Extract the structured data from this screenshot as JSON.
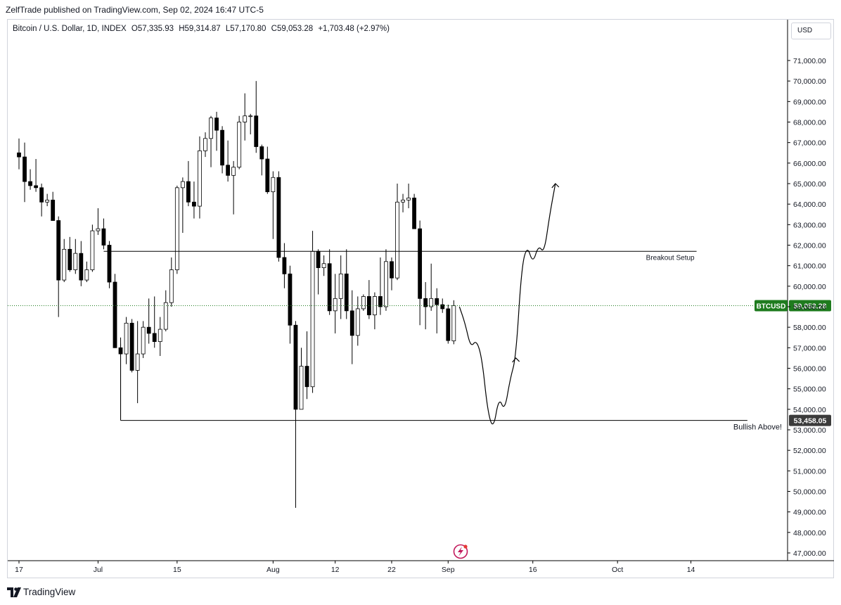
{
  "header": {
    "byline": "ZelfTrade published on TradingView.com, Sep 02, 2024 16:47 UTC-5"
  },
  "legend": {
    "symbol": "Bitcoin / U.S. Dollar, 1D, INDEX",
    "open": "O57,335.93",
    "high": "H59,314.87",
    "low": "L57,170.80",
    "close": "C59,053.28",
    "change": "+1,703.48 (+2.97%)"
  },
  "currency_button": "USD",
  "footer": {
    "brand": "TradingView"
  },
  "colors": {
    "up_body": "#ffffff",
    "down_body": "#000000",
    "wick": "#000000",
    "price_tag": "#1e7b1e",
    "support_tag": "#3b3b3b",
    "lines": "#000000"
  },
  "chart_data": {
    "type": "candlestick",
    "ylim": [
      46600,
      72000
    ],
    "y_ticks": [
      47000,
      48000,
      49000,
      50000,
      51000,
      52000,
      53000,
      54000,
      55000,
      56000,
      57000,
      58000,
      59000,
      60000,
      61000,
      62000,
      63000,
      64000,
      65000,
      66000,
      67000,
      68000,
      69000,
      70000,
      71000
    ],
    "y_tick_labels": [
      "47,000.00",
      "48,000.00",
      "49,000.00",
      "50,000.00",
      "51,000.00",
      "52,000.00",
      "53,000.00",
      "54,000.00",
      "55,000.00",
      "56,000.00",
      "57,000.00",
      "58,000.00",
      "59,000.00",
      "60,000.00",
      "61,000.00",
      "62,000.00",
      "63,000.00",
      "64,000.00",
      "65,000.00",
      "66,000.00",
      "67,000.00",
      "68,000.00",
      "69,000.00",
      "70,000.00",
      "71,000.00"
    ],
    "x_ticks": [
      {
        "label": "17",
        "date": "2024-06-17"
      },
      {
        "label": "Jul",
        "date": "2024-07-01"
      },
      {
        "label": "15",
        "date": "2024-07-15"
      },
      {
        "label": "Aug",
        "date": "2024-08-01"
      },
      {
        "label": "12",
        "date": "2024-08-12"
      },
      {
        "label": "22",
        "date": "2024-08-22"
      },
      {
        "label": "Sep",
        "date": "2024-09-01"
      },
      {
        "label": "16",
        "date": "2024-09-16"
      },
      {
        "label": "Oct",
        "date": "2024-10-01"
      },
      {
        "label": "14",
        "date": "2024-10-14"
      }
    ],
    "candles": [
      {
        "date": "2024-06-17",
        "o": 66500,
        "h": 67200,
        "l": 65700,
        "c": 66300
      },
      {
        "date": "2024-06-18",
        "o": 66300,
        "h": 67000,
        "l": 64100,
        "c": 65100
      },
      {
        "date": "2024-06-19",
        "o": 65100,
        "h": 65700,
        "l": 64700,
        "c": 64900
      },
      {
        "date": "2024-06-20",
        "o": 64900,
        "h": 66200,
        "l": 64600,
        "c": 64800
      },
      {
        "date": "2024-06-21",
        "o": 64800,
        "h": 65000,
        "l": 63400,
        "c": 64100
      },
      {
        "date": "2024-06-22",
        "o": 64100,
        "h": 64500,
        "l": 63900,
        "c": 64200
      },
      {
        "date": "2024-06-23",
        "o": 64200,
        "h": 64600,
        "l": 63300,
        "c": 63200
      },
      {
        "date": "2024-06-24",
        "o": 63200,
        "h": 63400,
        "l": 58500,
        "c": 60300
      },
      {
        "date": "2024-06-25",
        "o": 60300,
        "h": 62300,
        "l": 60200,
        "c": 61800
      },
      {
        "date": "2024-06-26",
        "o": 61800,
        "h": 62400,
        "l": 60700,
        "c": 60800
      },
      {
        "date": "2024-06-27",
        "o": 60800,
        "h": 62300,
        "l": 60600,
        "c": 61600
      },
      {
        "date": "2024-06-28",
        "o": 61600,
        "h": 62200,
        "l": 60000,
        "c": 60300
      },
      {
        "date": "2024-06-29",
        "o": 60300,
        "h": 61200,
        "l": 60200,
        "c": 60800
      },
      {
        "date": "2024-06-30",
        "o": 60800,
        "h": 63000,
        "l": 60700,
        "c": 62700
      },
      {
        "date": "2024-07-01",
        "o": 62700,
        "h": 63800,
        "l": 62500,
        "c": 62800
      },
      {
        "date": "2024-07-02",
        "o": 62800,
        "h": 63300,
        "l": 61800,
        "c": 62000
      },
      {
        "date": "2024-07-03",
        "o": 62000,
        "h": 62200,
        "l": 59900,
        "c": 60200
      },
      {
        "date": "2024-07-04",
        "o": 60200,
        "h": 60600,
        "l": 57000,
        "c": 57000
      },
      {
        "date": "2024-07-05",
        "o": 57000,
        "h": 57500,
        "l": 53500,
        "c": 56700
      },
      {
        "date": "2024-07-06",
        "o": 56700,
        "h": 58500,
        "l": 56200,
        "c": 58200
      },
      {
        "date": "2024-07-07",
        "o": 58200,
        "h": 58400,
        "l": 55800,
        "c": 55900
      },
      {
        "date": "2024-07-08",
        "o": 55900,
        "h": 58300,
        "l": 54300,
        "c": 56700
      },
      {
        "date": "2024-07-09",
        "o": 56700,
        "h": 58300,
        "l": 56500,
        "c": 58000
      },
      {
        "date": "2024-07-10",
        "o": 58000,
        "h": 59400,
        "l": 57200,
        "c": 57700
      },
      {
        "date": "2024-07-11",
        "o": 57700,
        "h": 59500,
        "l": 57000,
        "c": 57300
      },
      {
        "date": "2024-07-12",
        "o": 57300,
        "h": 58500,
        "l": 56600,
        "c": 57900
      },
      {
        "date": "2024-07-13",
        "o": 57900,
        "h": 59800,
        "l": 57800,
        "c": 59200
      },
      {
        "date": "2024-07-14",
        "o": 59200,
        "h": 61400,
        "l": 59000,
        "c": 60800
      },
      {
        "date": "2024-07-15",
        "o": 60800,
        "h": 64900,
        "l": 60600,
        "c": 64800
      },
      {
        "date": "2024-07-16",
        "o": 64800,
        "h": 65300,
        "l": 62600,
        "c": 65100
      },
      {
        "date": "2024-07-17",
        "o": 65100,
        "h": 66100,
        "l": 63900,
        "c": 64100
      },
      {
        "date": "2024-07-18",
        "o": 64100,
        "h": 65100,
        "l": 63300,
        "c": 63900
      },
      {
        "date": "2024-07-19",
        "o": 63900,
        "h": 67300,
        "l": 63300,
        "c": 66600
      },
      {
        "date": "2024-07-20",
        "o": 66600,
        "h": 67500,
        "l": 66300,
        "c": 67200
      },
      {
        "date": "2024-07-21",
        "o": 67200,
        "h": 68300,
        "l": 65800,
        "c": 68200
      },
      {
        "date": "2024-07-22",
        "o": 68200,
        "h": 68500,
        "l": 66600,
        "c": 67600
      },
      {
        "date": "2024-07-23",
        "o": 67600,
        "h": 67800,
        "l": 65500,
        "c": 65900
      },
      {
        "date": "2024-07-24",
        "o": 65900,
        "h": 67100,
        "l": 65100,
        "c": 65400
      },
      {
        "date": "2024-07-25",
        "o": 65400,
        "h": 66100,
        "l": 63500,
        "c": 65800
      },
      {
        "date": "2024-07-26",
        "o": 65800,
        "h": 68300,
        "l": 65700,
        "c": 68000
      },
      {
        "date": "2024-07-27",
        "o": 68000,
        "h": 69400,
        "l": 67100,
        "c": 68300
      },
      {
        "date": "2024-07-28",
        "o": 68300,
        "h": 68400,
        "l": 67400,
        "c": 68300
      },
      {
        "date": "2024-07-29",
        "o": 68300,
        "h": 70000,
        "l": 66500,
        "c": 66800
      },
      {
        "date": "2024-07-30",
        "o": 66800,
        "h": 66900,
        "l": 65400,
        "c": 66200
      },
      {
        "date": "2024-07-31",
        "o": 66200,
        "h": 66800,
        "l": 64500,
        "c": 64600
      },
      {
        "date": "2024-08-01",
        "o": 64600,
        "h": 65600,
        "l": 62300,
        "c": 65300
      },
      {
        "date": "2024-08-02",
        "o": 65300,
        "h": 65600,
        "l": 61200,
        "c": 61400
      },
      {
        "date": "2024-08-03",
        "o": 61400,
        "h": 62100,
        "l": 59900,
        "c": 60600
      },
      {
        "date": "2024-08-04",
        "o": 60600,
        "h": 61000,
        "l": 57200,
        "c": 58100
      },
      {
        "date": "2024-08-05",
        "o": 58100,
        "h": 58300,
        "l": 49200,
        "c": 54000
      },
      {
        "date": "2024-08-06",
        "o": 54000,
        "h": 57000,
        "l": 54000,
        "c": 56100
      },
      {
        "date": "2024-08-07",
        "o": 56100,
        "h": 57800,
        "l": 54500,
        "c": 55100
      },
      {
        "date": "2024-08-08",
        "o": 55100,
        "h": 62700,
        "l": 54800,
        "c": 61700
      },
      {
        "date": "2024-08-09",
        "o": 61700,
        "h": 61800,
        "l": 59600,
        "c": 60900
      },
      {
        "date": "2024-08-10",
        "o": 60900,
        "h": 61500,
        "l": 60500,
        "c": 61100
      },
      {
        "date": "2024-08-11",
        "o": 61100,
        "h": 61800,
        "l": 58600,
        "c": 58800
      },
      {
        "date": "2024-08-12",
        "o": 58800,
        "h": 60600,
        "l": 57700,
        "c": 59400
      },
      {
        "date": "2024-08-13",
        "o": 59400,
        "h": 61500,
        "l": 58400,
        "c": 60600
      },
      {
        "date": "2024-08-14",
        "o": 60600,
        "h": 61800,
        "l": 58400,
        "c": 58800
      },
      {
        "date": "2024-08-15",
        "o": 58800,
        "h": 59800,
        "l": 56200,
        "c": 57600
      },
      {
        "date": "2024-08-16",
        "o": 57600,
        "h": 59500,
        "l": 57100,
        "c": 58900
      },
      {
        "date": "2024-08-17",
        "o": 58900,
        "h": 59600,
        "l": 58800,
        "c": 59500
      },
      {
        "date": "2024-08-18",
        "o": 59500,
        "h": 60300,
        "l": 58400,
        "c": 58600
      },
      {
        "date": "2024-08-19",
        "o": 58600,
        "h": 59700,
        "l": 57900,
        "c": 59500
      },
      {
        "date": "2024-08-20",
        "o": 59500,
        "h": 61400,
        "l": 58600,
        "c": 59000
      },
      {
        "date": "2024-08-21",
        "o": 59000,
        "h": 61800,
        "l": 58800,
        "c": 61200
      },
      {
        "date": "2024-08-22",
        "o": 61200,
        "h": 61400,
        "l": 59800,
        "c": 60400
      },
      {
        "date": "2024-08-23",
        "o": 60400,
        "h": 65000,
        "l": 60300,
        "c": 64100
      },
      {
        "date": "2024-08-24",
        "o": 64100,
        "h": 64500,
        "l": 63600,
        "c": 64200
      },
      {
        "date": "2024-08-25",
        "o": 64200,
        "h": 65000,
        "l": 63800,
        "c": 64300
      },
      {
        "date": "2024-08-26",
        "o": 64300,
        "h": 64500,
        "l": 62800,
        "c": 62800
      },
      {
        "date": "2024-08-27",
        "o": 62800,
        "h": 63200,
        "l": 58100,
        "c": 59400
      },
      {
        "date": "2024-08-28",
        "o": 59400,
        "h": 60200,
        "l": 57900,
        "c": 59000
      },
      {
        "date": "2024-08-29",
        "o": 59000,
        "h": 61100,
        "l": 58800,
        "c": 59400
      },
      {
        "date": "2024-08-30",
        "o": 59400,
        "h": 59900,
        "l": 57700,
        "c": 59100
      },
      {
        "date": "2024-08-31",
        "o": 59100,
        "h": 59400,
        "l": 58700,
        "c": 58900
      },
      {
        "date": "2024-09-01",
        "o": 58900,
        "h": 59100,
        "l": 57200,
        "c": 57350
      },
      {
        "date": "2024-09-02",
        "o": 57336,
        "h": 59315,
        "l": 57171,
        "c": 59053
      }
    ],
    "horizontal_levels": [
      {
        "name": "Breakout Setup",
        "price": 61700,
        "start_date": "2024-07-02",
        "end_date": "2024-10-15"
      },
      {
        "name": "Bullish Above!",
        "price": 53458.05,
        "start_date": "2024-07-05",
        "end_date": "2024-10-24"
      }
    ],
    "price_tags": [
      {
        "symbol": "BTCUSD",
        "price": 59053.28,
        "value_label": "59,053.28",
        "tag_color": "#1e7b1e"
      },
      {
        "symbol": "",
        "price": 53458.05,
        "value_label": "53,458.05",
        "tag_color": "#3b3b3b"
      }
    ],
    "projection_path": [
      {
        "date": "2024-09-03",
        "p": 59000
      },
      {
        "date": "2024-09-04",
        "p": 58200
      },
      {
        "date": "2024-09-05",
        "p": 57000
      },
      {
        "date": "2024-09-06",
        "p": 57400
      },
      {
        "date": "2024-09-07",
        "p": 56500
      },
      {
        "date": "2024-09-08",
        "p": 53900
      },
      {
        "date": "2024-09-09",
        "p": 53000
      },
      {
        "date": "2024-09-10",
        "p": 54600
      },
      {
        "date": "2024-09-11",
        "p": 53900
      },
      {
        "date": "2024-09-12",
        "p": 55500
      },
      {
        "date": "2024-09-13",
        "p": 56500
      },
      {
        "date": "2024-09-14",
        "p": 60900
      },
      {
        "date": "2024-09-15",
        "p": 62000
      },
      {
        "date": "2024-09-16",
        "p": 61100
      },
      {
        "date": "2024-09-17",
        "p": 62000
      },
      {
        "date": "2024-09-18",
        "p": 61600
      },
      {
        "date": "2024-09-19",
        "p": 63500
      },
      {
        "date": "2024-09-20",
        "p": 65000
      }
    ]
  }
}
